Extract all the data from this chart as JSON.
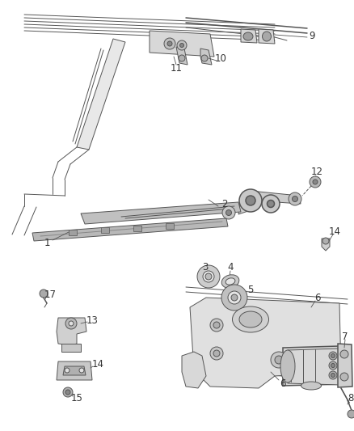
{
  "bg_color": "#ffffff",
  "line_color": "#555555",
  "dark_color": "#333333",
  "label_color": "#333333",
  "figsize": [
    4.38,
    5.33
  ],
  "dpi": 100,
  "font_size": 8.5,
  "lw_thin": 0.7,
  "lw_med": 1.1,
  "lw_thick": 1.6
}
